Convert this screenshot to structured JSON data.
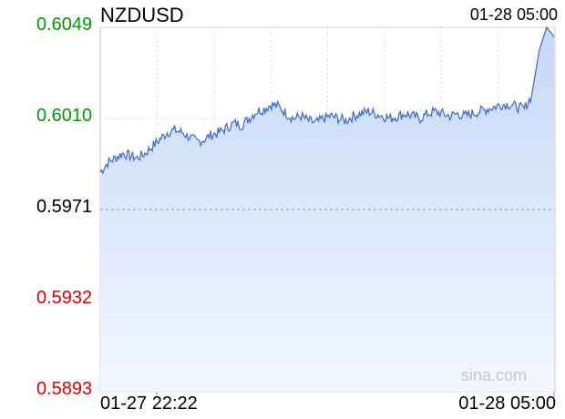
{
  "header": {
    "symbol": "NZDUSD",
    "timestamp": "01-28 05:00"
  },
  "watermark": "sina.com",
  "colors": {
    "line": "#4a72c4",
    "fill_top": "#c5d8f7",
    "fill_bottom": "#f2f7ff",
    "up": "#009900",
    "down": "#dd0000",
    "neutral": "#000000",
    "grid": "#dddddd",
    "mid_line": "#9999bb"
  },
  "chart_data": {
    "type": "area",
    "title": "NZDUSD",
    "y_ticks": [
      {
        "label": "0.6049",
        "value": 0.6049,
        "color": "up"
      },
      {
        "label": "0.6010",
        "value": 0.601,
        "color": "up"
      },
      {
        "label": "0.5971",
        "value": 0.5971,
        "color": "neutral"
      },
      {
        "label": "0.5932",
        "value": 0.5932,
        "color": "down"
      },
      {
        "label": "0.5893",
        "value": 0.5893,
        "color": "down"
      }
    ],
    "ylim": [
      0.5893,
      0.6049
    ],
    "reference_value": 0.5971,
    "x_labels": [
      "01-27 22:22",
      "01-28 05:00"
    ],
    "grid": true,
    "series": [
      {
        "values": [
          0.5987,
          0.5991,
          0.5993,
          0.5995,
          0.5994,
          0.5993,
          0.5995,
          0.5998,
          0.6001,
          0.6004,
          0.6005,
          0.6004,
          0.6002,
          0.6,
          0.6001,
          0.6003,
          0.6004,
          0.6006,
          0.6008,
          0.6007,
          0.601,
          0.6013,
          0.6014,
          0.6016,
          0.6015,
          0.6012,
          0.601,
          0.6011,
          0.6009,
          0.6008,
          0.601,
          0.6011,
          0.601,
          0.6009,
          0.6011,
          0.6012,
          0.6013,
          0.6012,
          0.6011,
          0.601,
          0.6011,
          0.6012,
          0.6011,
          0.601,
          0.6012,
          0.6013,
          0.6012,
          0.6011,
          0.6012,
          0.6011,
          0.6012,
          0.6013,
          0.6014,
          0.6015,
          0.6016,
          0.6016,
          0.6015,
          0.6014,
          0.602,
          0.6039,
          0.6049,
          0.6045
        ]
      }
    ]
  }
}
